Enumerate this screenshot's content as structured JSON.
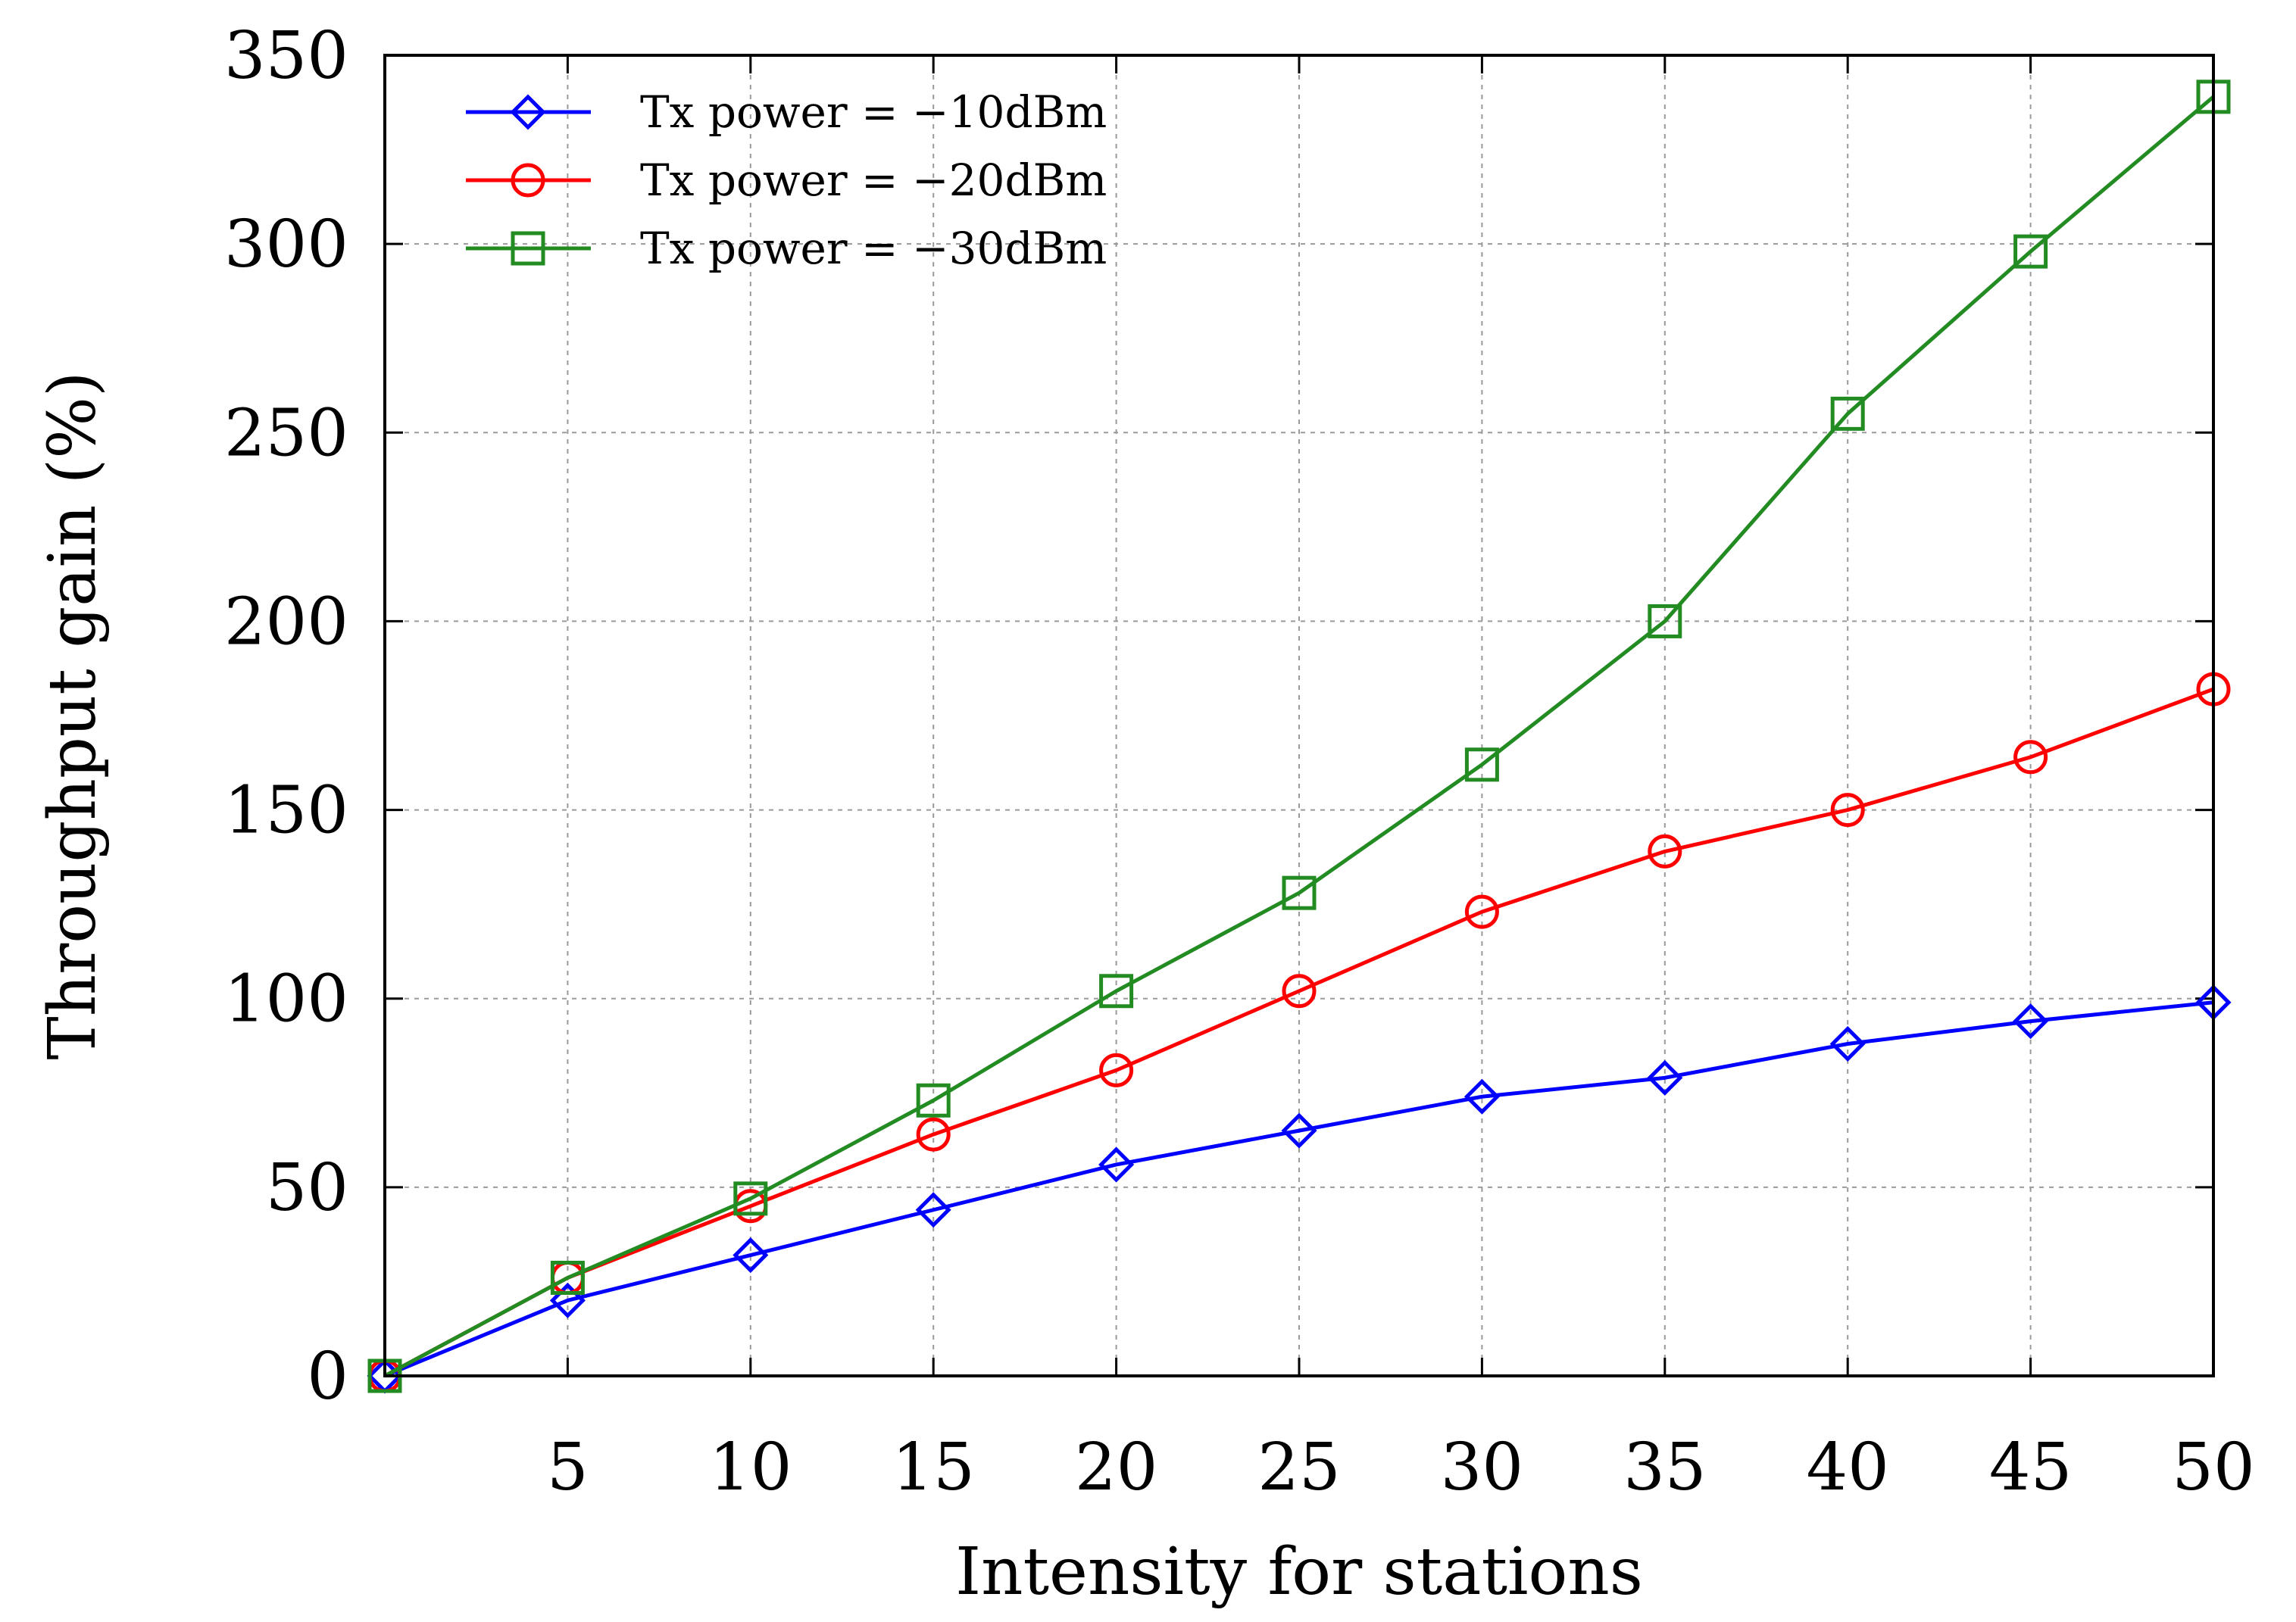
{
  "chart_data": {
    "type": "line",
    "title": "",
    "xlabel": "Intensity for stations",
    "ylabel": "Throughput gain (%)",
    "xlim": [
      0,
      50
    ],
    "ylim": [
      0,
      350
    ],
    "xticks": [
      5,
      10,
      15,
      20,
      25,
      30,
      35,
      40,
      45,
      50
    ],
    "yticks": [
      0,
      50,
      100,
      150,
      200,
      250,
      300,
      350
    ],
    "grid": true,
    "legend_position": "top-left",
    "x": [
      0,
      5,
      10,
      15,
      20,
      25,
      30,
      35,
      40,
      45,
      50
    ],
    "series": [
      {
        "name": "Tx power = −10dBm",
        "color": "#0000ff",
        "marker": "diamond",
        "values": [
          0,
          20,
          32,
          44,
          56,
          65,
          74,
          79,
          88,
          94,
          99
        ]
      },
      {
        "name": "Tx power = −20dBm",
        "color": "#ff0000",
        "marker": "circle",
        "values": [
          0,
          26,
          45,
          64,
          81,
          102,
          123,
          139,
          150,
          164,
          182
        ]
      },
      {
        "name": "Tx power = −30dBm",
        "color": "#228b22",
        "marker": "square",
        "values": [
          0,
          26,
          47,
          73,
          102,
          128,
          162,
          200,
          255,
          298,
          339
        ]
      }
    ]
  }
}
